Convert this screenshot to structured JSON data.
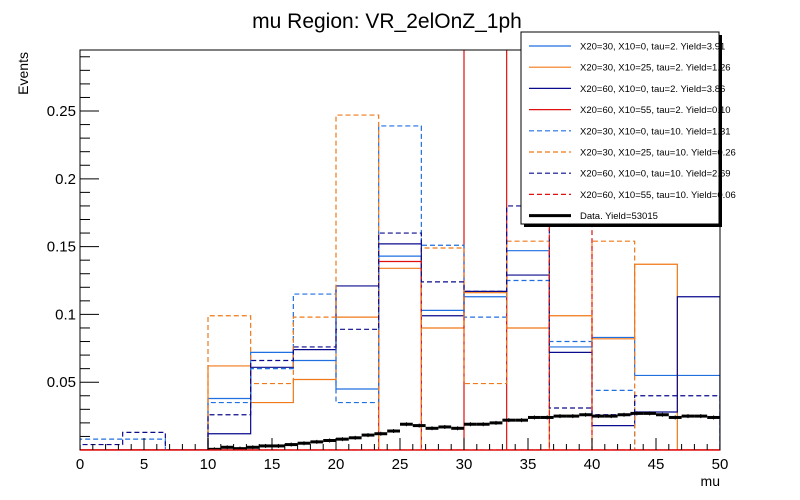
{
  "chart_data": {
    "type": "line",
    "style": "step-histogram",
    "title": "mu Region: VR_2elOnZ_1ph",
    "xlabel": "mu",
    "ylabel": "Events",
    "xlim": [
      0,
      50
    ],
    "ylim": [
      0,
      0.295
    ],
    "x_ticks": [
      0,
      5,
      10,
      15,
      20,
      25,
      30,
      35,
      40,
      45,
      50
    ],
    "x_tick_labels": [
      "0",
      "5",
      "10",
      "15",
      "20",
      "25",
      "30",
      "35",
      "40",
      "45",
      "50"
    ],
    "y_ticks": [
      0.05,
      0.1,
      0.15,
      0.2,
      0.25
    ],
    "y_tick_labels": [
      "0.05",
      "0.1",
      "0.15",
      "0.2",
      "0.25"
    ],
    "grid": false,
    "legend_position": "top-right",
    "bin_edges": [
      0,
      3.333,
      6.667,
      10,
      13.333,
      16.667,
      20,
      23.333,
      26.667,
      30,
      33.333,
      36.667,
      40,
      43.333,
      46.667,
      50
    ],
    "series": [
      {
        "name": "X20=30, X10=0, tau=2. Yield=3.91",
        "color": "#1f6fe0",
        "dash": false,
        "values": [
          0,
          0,
          0,
          0.038,
          0.072,
          0.066,
          0.045,
          0.143,
          0.103,
          0.113,
          0.147,
          0.076,
          0.083,
          0.055,
          0.055
        ]
      },
      {
        "name": "X20=30, X10=25, tau=2. Yield=1.26",
        "color": "#f07818",
        "dash": false,
        "values": [
          0,
          0,
          0,
          0.062,
          0.035,
          0.052,
          0.098,
          0.134,
          0.09,
          0.116,
          0.09,
          0.099,
          0.082,
          0.137,
          0
        ]
      },
      {
        "name": "X20=60, X10=0, tau=2. Yield=3.86",
        "color": "#0a0a8c",
        "dash": false,
        "values": [
          0,
          0,
          0,
          0.012,
          0.061,
          0.074,
          0.121,
          0.152,
          0.099,
          0.117,
          0.129,
          0.072,
          0.018,
          0.028,
          0.113
        ]
      },
      {
        "name": "X20=60, X10=55, tau=2. Yield=0.10",
        "color": "#e01010",
        "dash": false,
        "values": [
          0,
          0,
          0,
          0,
          0,
          0,
          0,
          0.139,
          0,
          0.5,
          0,
          0,
          0,
          0,
          0
        ]
      },
      {
        "name": "X20=30, X10=0, tau=10. Yield=1.31",
        "color": "#1f6fe0",
        "dash": true,
        "values": [
          0.008,
          0.008,
          0,
          0.035,
          0.06,
          0.115,
          0.035,
          0.239,
          0.151,
          0.098,
          0.125,
          0.08,
          0.044,
          0,
          0
        ]
      },
      {
        "name": "X20=30, X10=25, tau=10. Yield=0.26",
        "color": "#f07818",
        "dash": true,
        "values": [
          0,
          0,
          0,
          0.099,
          0.049,
          0.098,
          0.247,
          0,
          0.149,
          0.049,
          0.154,
          0,
          0.154,
          0,
          0
        ]
      },
      {
        "name": "X20=60, X10=0, tau=10. Yield=2.69",
        "color": "#0a0a8c",
        "dash": true,
        "values": [
          0.004,
          0.013,
          0,
          0.026,
          0.066,
          0.076,
          0.089,
          0.16,
          0.124,
          0.117,
          0.18,
          0.031,
          0.026,
          0.04,
          0.04
        ]
      },
      {
        "name": "X20=60, X10=55, tau=10. Yield=0.06",
        "color": "#e01010",
        "dash": true,
        "values": [
          0,
          0,
          0,
          0,
          0,
          0,
          0,
          0,
          0,
          0,
          0,
          0.5,
          0,
          0,
          0
        ]
      },
      {
        "name": "Data. Yield=53015",
        "color": "#000000",
        "dash": false,
        "type": "data",
        "x": [
          10.5,
          11.5,
          12.5,
          13.5,
          14.5,
          15.5,
          16.5,
          17.5,
          18.5,
          19.5,
          20.5,
          21.5,
          22.5,
          23.5,
          24.5,
          25.5,
          26.5,
          27.5,
          28.5,
          29.5,
          30.5,
          31.5,
          32.5,
          33.5,
          34.5,
          35.5,
          36.5,
          37.5,
          38.5,
          39.5,
          40.5,
          41.5,
          42.5,
          43.5,
          44.5,
          45.5,
          46.5,
          47.5,
          48.5,
          49.5
        ],
        "values": [
          0.0005,
          0.002,
          0.001,
          0.002,
          0.003,
          0.003,
          0.004,
          0.005,
          0.006,
          0.007,
          0.008,
          0.009,
          0.011,
          0.012,
          0.014,
          0.019,
          0.018,
          0.016,
          0.017,
          0.016,
          0.019,
          0.019,
          0.02,
          0.022,
          0.022,
          0.024,
          0.024,
          0.025,
          0.025,
          0.026,
          0.025,
          0.025,
          0.026,
          0.027,
          0.027,
          0.026,
          0.024,
          0.025,
          0.025,
          0.024
        ]
      }
    ]
  }
}
